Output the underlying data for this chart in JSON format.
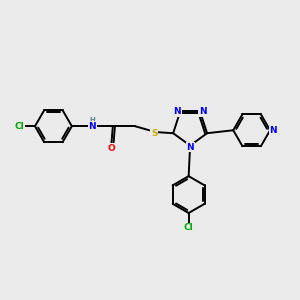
{
  "bg_color": "#ebebeb",
  "bond_color": "#000000",
  "bond_width": 1.4,
  "atom_colors": {
    "N": "#0000ff",
    "O": "#ff0000",
    "S": "#ccaa00",
    "Cl": "#00aa00",
    "C": "#000000",
    "H": "#558888"
  },
  "font_size": 6.5,
  "figsize": [
    3.0,
    3.0
  ],
  "dpi": 100
}
